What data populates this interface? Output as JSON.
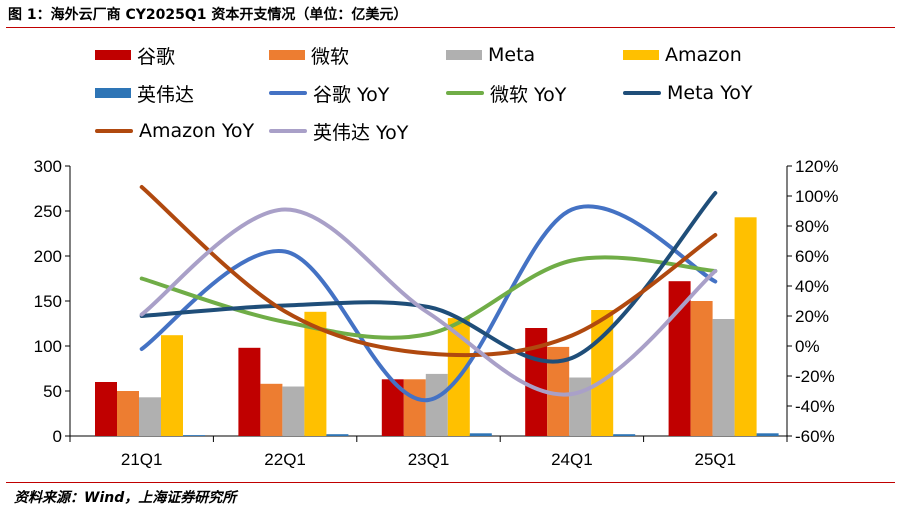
{
  "title": "图 1：海外云厂商 CY2025Q1 资本开支情况（单位：亿美元）",
  "source": "资料来源：Wind，上海证券研究所",
  "colors": {
    "google": "#c00000",
    "microsoft": "#ed7d31",
    "meta": "#b0b0b0",
    "amazon": "#ffc000",
    "nvidia": "#2e75b6",
    "google_yoy": "#4472c4",
    "microsoft_yoy": "#70ad47",
    "meta_yoy": "#1f4e79",
    "amazon_yoy": "#b0490f",
    "nvidia_yoy": "#a9a0c8",
    "rule": "#c00000"
  },
  "chart_data": {
    "type": "bar+line",
    "categories": [
      "21Q1",
      "22Q1",
      "23Q1",
      "24Q1",
      "25Q1"
    ],
    "y_left": {
      "ylim": [
        0,
        300
      ],
      "ticks": [
        "0",
        "50",
        "100",
        "150",
        "200",
        "250",
        "300"
      ]
    },
    "y_right": {
      "ylim": [
        -0.6,
        1.2
      ],
      "ticks": [
        "-60%",
        "-40%",
        "-20%",
        "0%",
        "20%",
        "40%",
        "60%",
        "80%",
        "100%",
        "120%"
      ]
    },
    "bar_series": [
      {
        "name": "谷歌",
        "color_key": "google",
        "values": [
          60,
          98,
          63,
          120,
          172
        ]
      },
      {
        "name": "微软",
        "color_key": "microsoft",
        "values": [
          50,
          58,
          63,
          99,
          150
        ]
      },
      {
        "name": "Meta",
        "color_key": "meta",
        "values": [
          43,
          55,
          69,
          65,
          130
        ]
      },
      {
        "name": "Amazon",
        "color_key": "amazon",
        "values": [
          112,
          138,
          131,
          140,
          243
        ]
      },
      {
        "name": "英伟达",
        "color_key": "nvidia",
        "values": [
          1,
          2,
          3,
          2,
          3
        ]
      }
    ],
    "line_series": [
      {
        "name": "谷歌 YoY",
        "color_key": "google_yoy",
        "values": [
          -0.02,
          0.63,
          -0.36,
          0.91,
          0.43
        ]
      },
      {
        "name": "微软 YoY",
        "color_key": "microsoft_yoy",
        "values": [
          0.45,
          0.16,
          0.08,
          0.57,
          0.5
        ]
      },
      {
        "name": "Meta YoY",
        "color_key": "meta_yoy",
        "values": [
          0.2,
          0.27,
          0.26,
          -0.08,
          1.02
        ]
      },
      {
        "name": "Amazon YoY",
        "color_key": "amazon_yoy",
        "values": [
          1.06,
          0.23,
          -0.05,
          0.07,
          0.74
        ]
      },
      {
        "name": "英伟达 YoY",
        "color_key": "nvidia_yoy",
        "values": [
          0.21,
          0.91,
          0.22,
          -0.32,
          0.5
        ]
      }
    ]
  }
}
